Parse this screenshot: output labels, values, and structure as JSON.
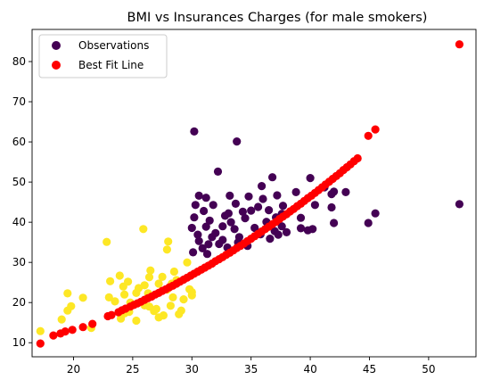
{
  "chart_data": {
    "type": "scatter",
    "title": "BMI vs Insurances Charges (for male smokers)",
    "xlabel": "",
    "ylabel": "",
    "xlim": [
      16.5,
      54.0
    ],
    "ylim": [
      6.5,
      88.0
    ],
    "xticks": [
      20,
      25,
      30,
      35,
      40,
      45,
      50
    ],
    "yticks": [
      10,
      20,
      30,
      40,
      50,
      60,
      70,
      80
    ],
    "grid": false,
    "legend": {
      "placement": "top-left",
      "entries": [
        {
          "label": "Observations",
          "color": "#440154"
        },
        {
          "label": "Best Fit Line",
          "color": "#ff0000"
        }
      ]
    },
    "colors": {
      "cluster_high": "#440154",
      "cluster_low": "#fde725",
      "fit": "#ff0000"
    },
    "series": [
      {
        "name": "Observations",
        "cluster": "high",
        "points": [
          [
            30.2,
            62.6
          ],
          [
            33.8,
            60.1
          ],
          [
            32.2,
            52.6
          ],
          [
            36.8,
            51.2
          ],
          [
            35.9,
            49.0
          ],
          [
            40.0,
            51.0
          ],
          [
            41.2,
            48.7
          ],
          [
            42.0,
            47.6
          ],
          [
            30.6,
            46.6
          ],
          [
            31.2,
            46.1
          ],
          [
            33.2,
            46.6
          ],
          [
            34.8,
            46.4
          ],
          [
            37.2,
            46.7
          ],
          [
            38.8,
            47.5
          ],
          [
            41.8,
            47.0
          ],
          [
            43.0,
            47.5
          ],
          [
            30.3,
            44.3
          ],
          [
            31.8,
            44.3
          ],
          [
            33.7,
            44.6
          ],
          [
            36.0,
            45.8
          ],
          [
            37.7,
            44.1
          ],
          [
            40.4,
            44.3
          ],
          [
            31.0,
            42.8
          ],
          [
            33.1,
            42.2
          ],
          [
            35.0,
            42.9
          ],
          [
            37.6,
            42.1
          ],
          [
            41.8,
            43.7
          ],
          [
            30.2,
            41.2
          ],
          [
            31.5,
            40.4
          ],
          [
            33.3,
            40.0
          ],
          [
            34.5,
            41.0
          ],
          [
            36.3,
            40.1
          ],
          [
            39.2,
            41.1
          ],
          [
            42.0,
            39.8
          ],
          [
            44.9,
            39.8
          ],
          [
            45.5,
            42.2
          ],
          [
            52.6,
            44.5
          ],
          [
            30.0,
            38.6
          ],
          [
            31.2,
            38.9
          ],
          [
            32.6,
            39.0
          ],
          [
            33.6,
            38.3
          ],
          [
            35.3,
            38.6
          ],
          [
            37.0,
            37.8
          ],
          [
            37.6,
            39.0
          ],
          [
            39.2,
            38.5
          ],
          [
            40.2,
            38.3
          ],
          [
            30.5,
            36.9
          ],
          [
            31.7,
            36.3
          ],
          [
            34.0,
            36.3
          ],
          [
            35.8,
            37.0
          ],
          [
            37.3,
            36.9
          ],
          [
            30.6,
            35.3
          ],
          [
            31.4,
            34.5
          ],
          [
            32.6,
            35.6
          ],
          [
            30.9,
            33.5
          ],
          [
            33.0,
            33.7
          ],
          [
            30.1,
            32.5
          ],
          [
            31.3,
            32.1
          ],
          [
            32.3,
            34.6
          ],
          [
            33.9,
            35.0
          ],
          [
            34.7,
            34.1
          ],
          [
            38.0,
            37.5
          ],
          [
            35.6,
            43.8
          ],
          [
            36.5,
            43.0
          ],
          [
            34.3,
            42.6
          ],
          [
            32.8,
            41.6
          ],
          [
            37.1,
            41.2
          ],
          [
            39.8,
            38.0
          ],
          [
            32.0,
            37.3
          ],
          [
            36.6,
            35.9
          ]
        ]
      },
      {
        "name": "",
        "cluster": "low",
        "points": [
          [
            17.2,
            12.9
          ],
          [
            19.0,
            15.8
          ],
          [
            19.5,
            22.3
          ],
          [
            19.5,
            18.0
          ],
          [
            19.8,
            19.1
          ],
          [
            20.8,
            21.2
          ],
          [
            21.5,
            13.7
          ],
          [
            22.8,
            35.1
          ],
          [
            23.1,
            25.3
          ],
          [
            23.0,
            21.3
          ],
          [
            23.9,
            26.7
          ],
          [
            24.2,
            24.0
          ],
          [
            24.3,
            22.0
          ],
          [
            24.6,
            25.2
          ],
          [
            24.8,
            20.0
          ],
          [
            25.3,
            22.4
          ],
          [
            25.9,
            38.3
          ],
          [
            26.0,
            24.3
          ],
          [
            26.4,
            26.3
          ],
          [
            26.5,
            28.0
          ],
          [
            27.2,
            24.7
          ],
          [
            27.5,
            26.4
          ],
          [
            27.9,
            23.2
          ],
          [
            28.0,
            35.2
          ],
          [
            28.3,
            24.7
          ],
          [
            28.7,
            25.6
          ],
          [
            24.3,
            17.3
          ],
          [
            24.0,
            16.0
          ],
          [
            25.3,
            15.5
          ],
          [
            26.0,
            19.3
          ],
          [
            26.4,
            19.0
          ],
          [
            26.8,
            17.9
          ],
          [
            27.2,
            16.3
          ],
          [
            27.6,
            16.8
          ],
          [
            28.2,
            19.2
          ],
          [
            28.9,
            17.1
          ],
          [
            29.1,
            18.0
          ],
          [
            29.8,
            23.3
          ],
          [
            30.0,
            22.6
          ],
          [
            28.4,
            21.3
          ],
          [
            29.3,
            20.8
          ],
          [
            27.9,
            33.2
          ],
          [
            25.5,
            23.6
          ],
          [
            24.7,
            17.7
          ],
          [
            26.3,
            22.3
          ],
          [
            27.0,
            18.4
          ],
          [
            28.5,
            27.7
          ],
          [
            29.6,
            30.0
          ],
          [
            30.0,
            21.8
          ],
          [
            23.5,
            20.3
          ]
        ]
      },
      {
        "name": "Best Fit Line",
        "cluster": "fit",
        "points": [
          [
            17.2,
            9.8
          ],
          [
            18.3,
            11.8
          ],
          [
            18.9,
            12.3
          ],
          [
            19.3,
            12.8
          ],
          [
            19.9,
            13.2
          ],
          [
            20.8,
            13.9
          ],
          [
            21.6,
            14.7
          ],
          [
            22.9,
            16.6
          ],
          [
            23.2,
            16.9
          ],
          [
            23.8,
            17.6
          ],
          [
            24.1,
            18.1
          ],
          [
            24.4,
            18.5
          ],
          [
            24.8,
            19.0
          ],
          [
            25.1,
            19.4
          ],
          [
            25.4,
            19.8
          ],
          [
            25.7,
            20.2
          ],
          [
            26.0,
            20.7
          ],
          [
            26.3,
            21.1
          ],
          [
            26.6,
            21.5
          ],
          [
            26.9,
            22.0
          ],
          [
            27.2,
            22.4
          ],
          [
            27.5,
            22.9
          ],
          [
            27.8,
            23.3
          ],
          [
            28.1,
            23.8
          ],
          [
            28.4,
            24.2
          ],
          [
            28.7,
            24.7
          ],
          [
            29.0,
            25.2
          ],
          [
            29.3,
            25.7
          ],
          [
            29.6,
            26.2
          ],
          [
            29.9,
            26.7
          ],
          [
            30.2,
            27.2
          ],
          [
            30.5,
            27.7
          ],
          [
            30.8,
            28.2
          ],
          [
            31.1,
            28.7
          ],
          [
            31.4,
            29.2
          ],
          [
            31.7,
            29.7
          ],
          [
            32.0,
            30.3
          ],
          [
            32.3,
            30.8
          ],
          [
            32.6,
            31.3
          ],
          [
            32.9,
            31.9
          ],
          [
            33.2,
            32.4
          ],
          [
            33.5,
            33.0
          ],
          [
            33.8,
            33.6
          ],
          [
            34.1,
            34.1
          ],
          [
            34.4,
            34.7
          ],
          [
            34.7,
            35.3
          ],
          [
            35.0,
            35.9
          ],
          [
            35.3,
            36.5
          ],
          [
            35.6,
            37.1
          ],
          [
            35.9,
            37.7
          ],
          [
            36.2,
            38.3
          ],
          [
            36.5,
            38.9
          ],
          [
            36.8,
            39.5
          ],
          [
            37.1,
            40.1
          ],
          [
            37.4,
            40.8
          ],
          [
            37.7,
            41.4
          ],
          [
            38.0,
            42.0
          ],
          [
            38.3,
            42.7
          ],
          [
            38.6,
            43.3
          ],
          [
            38.9,
            44.0
          ],
          [
            39.2,
            44.6
          ],
          [
            39.5,
            45.3
          ],
          [
            39.8,
            46.0
          ],
          [
            40.1,
            46.6
          ],
          [
            40.4,
            47.3
          ],
          [
            40.7,
            48.0
          ],
          [
            41.0,
            48.7
          ],
          [
            41.3,
            49.4
          ],
          [
            41.6,
            50.1
          ],
          [
            41.9,
            50.8
          ],
          [
            42.2,
            51.5
          ],
          [
            42.5,
            52.2
          ],
          [
            42.8,
            53.0
          ],
          [
            43.1,
            53.7
          ],
          [
            43.4,
            54.4
          ],
          [
            43.7,
            55.2
          ],
          [
            44.0,
            55.9
          ],
          [
            44.9,
            61.5
          ],
          [
            45.5,
            63.1
          ],
          [
            52.6,
            84.3
          ]
        ]
      }
    ]
  }
}
